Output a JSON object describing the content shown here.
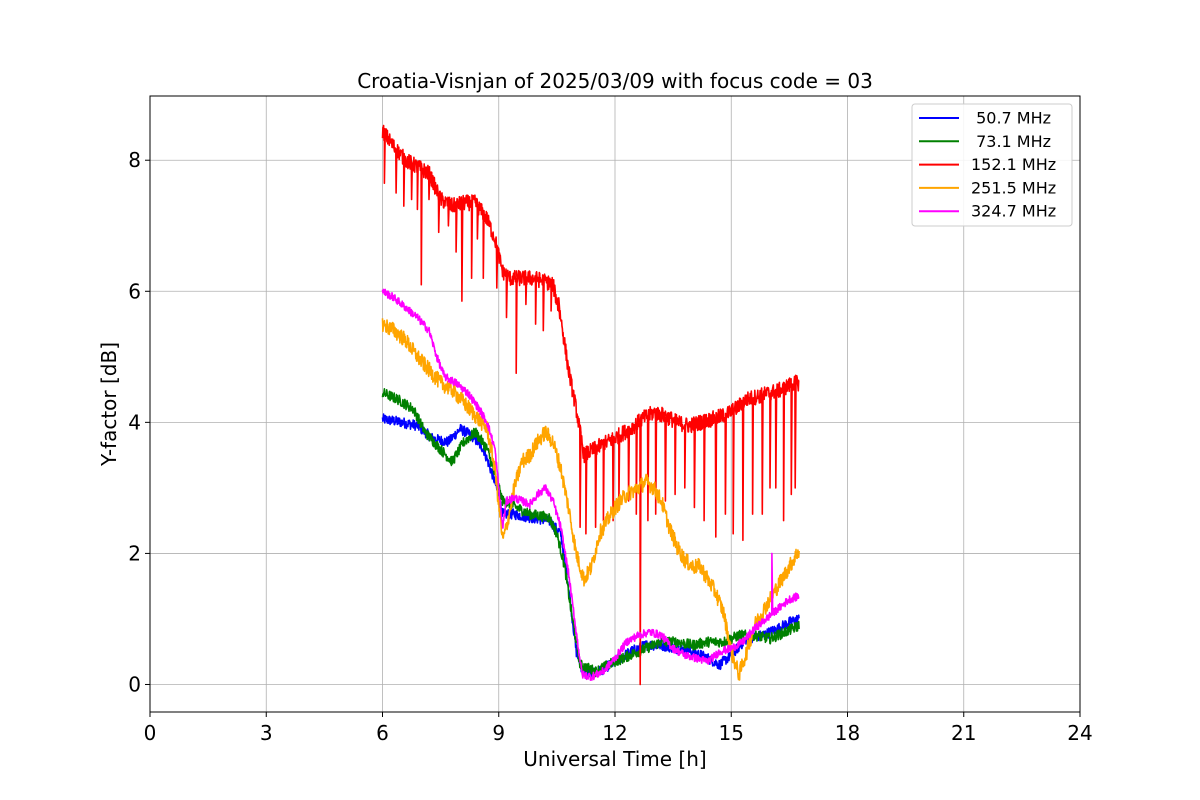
{
  "chart_data": {
    "type": "line",
    "title": "Croatia-Visnjan of 2025/03/09 with focus code = 03",
    "xlabel": "Universal Time [h]",
    "ylabel": "Y-factor [dB]",
    "xlim": [
      0,
      24
    ],
    "ylim": [
      -0.42,
      8.98
    ],
    "xticks": [
      0,
      3,
      6,
      9,
      12,
      15,
      18,
      21,
      24
    ],
    "yticks": [
      0,
      2,
      4,
      6,
      8
    ],
    "grid": true,
    "legend_position": "top-right",
    "series": [
      {
        "name": " 50.7 MHz",
        "color": "#0000ff",
        "noise": 0.08,
        "points": [
          [
            6.0,
            4.05
          ],
          [
            6.5,
            4.0
          ],
          [
            6.9,
            3.95
          ],
          [
            7.3,
            3.75
          ],
          [
            7.7,
            3.7
          ],
          [
            8.0,
            3.9
          ],
          [
            8.3,
            3.8
          ],
          [
            8.6,
            3.6
          ],
          [
            8.9,
            3.1
          ],
          [
            9.1,
            2.6
          ],
          [
            9.4,
            2.6
          ],
          [
            9.8,
            2.55
          ],
          [
            10.3,
            2.5
          ],
          [
            10.6,
            2.3
          ],
          [
            10.8,
            1.5
          ],
          [
            11.0,
            0.5
          ],
          [
            11.2,
            0.15
          ],
          [
            11.6,
            0.2
          ],
          [
            12.0,
            0.35
          ],
          [
            12.4,
            0.5
          ],
          [
            12.8,
            0.6
          ],
          [
            13.2,
            0.6
          ],
          [
            13.6,
            0.55
          ],
          [
            14.0,
            0.5
          ],
          [
            14.4,
            0.4
          ],
          [
            14.7,
            0.3
          ],
          [
            15.0,
            0.45
          ],
          [
            15.4,
            0.7
          ],
          [
            15.8,
            0.75
          ],
          [
            16.2,
            0.85
          ],
          [
            16.5,
            0.95
          ],
          [
            16.75,
            1.0
          ]
        ]
      },
      {
        "name": " 73.1 MHz",
        "color": "#008000",
        "noise": 0.08,
        "points": [
          [
            6.0,
            4.45
          ],
          [
            6.4,
            4.35
          ],
          [
            6.8,
            4.2
          ],
          [
            7.1,
            3.85
          ],
          [
            7.4,
            3.65
          ],
          [
            7.8,
            3.4
          ],
          [
            8.1,
            3.7
          ],
          [
            8.4,
            3.85
          ],
          [
            8.7,
            3.6
          ],
          [
            8.9,
            3.2
          ],
          [
            9.1,
            2.8
          ],
          [
            9.3,
            2.75
          ],
          [
            9.8,
            2.6
          ],
          [
            10.3,
            2.55
          ],
          [
            10.5,
            2.3
          ],
          [
            10.7,
            1.8
          ],
          [
            10.9,
            1.0
          ],
          [
            11.1,
            0.3
          ],
          [
            11.5,
            0.2
          ],
          [
            12.0,
            0.35
          ],
          [
            12.4,
            0.45
          ],
          [
            12.8,
            0.55
          ],
          [
            13.2,
            0.65
          ],
          [
            13.6,
            0.65
          ],
          [
            14.0,
            0.6
          ],
          [
            14.4,
            0.65
          ],
          [
            14.8,
            0.65
          ],
          [
            15.2,
            0.75
          ],
          [
            15.6,
            0.75
          ],
          [
            16.0,
            0.7
          ],
          [
            16.4,
            0.8
          ],
          [
            16.75,
            0.9
          ]
        ]
      },
      {
        "name": "152.1 MHz",
        "color": "#ff0000",
        "noise": 0.12,
        "points": [
          [
            6.0,
            8.45
          ],
          [
            6.3,
            8.2
          ],
          [
            6.6,
            8.0
          ],
          [
            6.9,
            7.9
          ],
          [
            7.2,
            7.8
          ],
          [
            7.5,
            7.4
          ],
          [
            7.8,
            7.3
          ],
          [
            8.1,
            7.35
          ],
          [
            8.4,
            7.35
          ],
          [
            8.7,
            7.1
          ],
          [
            8.9,
            6.8
          ],
          [
            9.1,
            6.3
          ],
          [
            9.3,
            6.2
          ],
          [
            9.6,
            6.2
          ],
          [
            9.9,
            6.2
          ],
          [
            10.2,
            6.15
          ],
          [
            10.4,
            6.1
          ],
          [
            10.6,
            5.6
          ],
          [
            10.8,
            4.8
          ],
          [
            11.0,
            4.2
          ],
          [
            11.2,
            3.5
          ],
          [
            11.5,
            3.6
          ],
          [
            11.8,
            3.7
          ],
          [
            12.1,
            3.8
          ],
          [
            12.4,
            3.9
          ],
          [
            12.7,
            4.05
          ],
          [
            13.0,
            4.15
          ],
          [
            13.3,
            4.1
          ],
          [
            13.6,
            4.0
          ],
          [
            13.9,
            3.95
          ],
          [
            14.2,
            4.0
          ],
          [
            14.5,
            4.05
          ],
          [
            14.8,
            4.1
          ],
          [
            15.1,
            4.2
          ],
          [
            15.4,
            4.35
          ],
          [
            15.7,
            4.4
          ],
          [
            16.0,
            4.45
          ],
          [
            16.3,
            4.5
          ],
          [
            16.6,
            4.6
          ],
          [
            16.75,
            4.6
          ]
        ],
        "dips": [
          [
            6.05,
            7.65
          ],
          [
            6.35,
            7.5
          ],
          [
            6.55,
            7.3
          ],
          [
            6.75,
            7.4
          ],
          [
            6.9,
            7.25
          ],
          [
            7.0,
            6.1
          ],
          [
            7.2,
            7.4
          ],
          [
            7.45,
            6.9
          ],
          [
            7.7,
            7.0
          ],
          [
            7.9,
            6.6
          ],
          [
            8.05,
            5.85
          ],
          [
            8.3,
            6.2
          ],
          [
            8.45,
            6.8
          ],
          [
            8.6,
            6.2
          ],
          [
            8.95,
            6.05
          ],
          [
            9.2,
            5.6
          ],
          [
            9.45,
            4.75
          ],
          [
            9.7,
            5.8
          ],
          [
            9.95,
            5.5
          ],
          [
            10.15,
            5.4
          ],
          [
            10.35,
            5.7
          ],
          [
            10.55,
            5.9
          ],
          [
            11.1,
            2.4
          ],
          [
            11.25,
            2.3
          ],
          [
            11.5,
            2.4
          ],
          [
            11.7,
            2.5
          ],
          [
            11.95,
            2.5
          ],
          [
            12.1,
            2.7
          ],
          [
            12.35,
            2.8
          ],
          [
            12.55,
            2.6
          ],
          [
            12.65,
            0.0
          ],
          [
            12.85,
            2.5
          ],
          [
            13.05,
            2.6
          ],
          [
            13.3,
            2.8
          ],
          [
            13.55,
            2.9
          ],
          [
            13.8,
            3.0
          ],
          [
            14.05,
            2.7
          ],
          [
            14.3,
            2.5
          ],
          [
            14.6,
            2.25
          ],
          [
            14.85,
            2.6
          ],
          [
            15.05,
            2.3
          ],
          [
            15.3,
            2.2
          ],
          [
            15.55,
            2.6
          ],
          [
            15.8,
            2.6
          ],
          [
            16.0,
            3.0
          ],
          [
            16.15,
            3.0
          ],
          [
            16.35,
            2.5
          ],
          [
            16.55,
            2.9
          ],
          [
            16.65,
            3.0
          ]
        ]
      },
      {
        "name": "251.5 MHz",
        "color": "#ffa500",
        "noise": 0.12,
        "points": [
          [
            6.0,
            5.5
          ],
          [
            6.3,
            5.4
          ],
          [
            6.6,
            5.25
          ],
          [
            6.9,
            5.0
          ],
          [
            7.2,
            4.8
          ],
          [
            7.5,
            4.6
          ],
          [
            7.8,
            4.5
          ],
          [
            8.1,
            4.3
          ],
          [
            8.4,
            4.1
          ],
          [
            8.7,
            3.9
          ],
          [
            8.9,
            3.3
          ],
          [
            9.1,
            2.2
          ],
          [
            9.2,
            2.4
          ],
          [
            9.4,
            3.0
          ],
          [
            9.6,
            3.4
          ],
          [
            9.8,
            3.5
          ],
          [
            10.0,
            3.7
          ],
          [
            10.2,
            3.85
          ],
          [
            10.4,
            3.7
          ],
          [
            10.6,
            3.3
          ],
          [
            10.8,
            2.7
          ],
          [
            11.0,
            2.0
          ],
          [
            11.2,
            1.6
          ],
          [
            11.4,
            1.8
          ],
          [
            11.6,
            2.3
          ],
          [
            11.8,
            2.5
          ],
          [
            12.0,
            2.7
          ],
          [
            12.3,
            2.9
          ],
          [
            12.6,
            3.0
          ],
          [
            12.8,
            3.1
          ],
          [
            13.0,
            3.0
          ],
          [
            13.2,
            2.8
          ],
          [
            13.4,
            2.4
          ],
          [
            13.6,
            2.1
          ],
          [
            13.8,
            1.9
          ],
          [
            14.0,
            1.8
          ],
          [
            14.2,
            1.8
          ],
          [
            14.4,
            1.6
          ],
          [
            14.6,
            1.4
          ],
          [
            14.8,
            1.1
          ],
          [
            15.0,
            0.5
          ],
          [
            15.2,
            0.15
          ],
          [
            15.4,
            0.5
          ],
          [
            15.6,
            0.9
          ],
          [
            15.8,
            1.1
          ],
          [
            16.0,
            1.3
          ],
          [
            16.2,
            1.5
          ],
          [
            16.4,
            1.7
          ],
          [
            16.6,
            1.9
          ],
          [
            16.75,
            2.05
          ]
        ]
      },
      {
        "name": "324.7 MHz",
        "color": "#ff00ff",
        "noise": 0.06,
        "points": [
          [
            6.0,
            6.0
          ],
          [
            6.3,
            5.9
          ],
          [
            6.6,
            5.75
          ],
          [
            6.9,
            5.6
          ],
          [
            7.2,
            5.4
          ],
          [
            7.4,
            5.0
          ],
          [
            7.6,
            4.7
          ],
          [
            7.9,
            4.6
          ],
          [
            8.2,
            4.45
          ],
          [
            8.5,
            4.2
          ],
          [
            8.7,
            4.0
          ],
          [
            8.9,
            3.6
          ],
          [
            9.0,
            3.0
          ],
          [
            9.1,
            2.4
          ],
          [
            9.2,
            2.8
          ],
          [
            9.4,
            2.85
          ],
          [
            9.6,
            2.8
          ],
          [
            9.8,
            2.75
          ],
          [
            10.0,
            2.9
          ],
          [
            10.2,
            3.0
          ],
          [
            10.4,
            2.8
          ],
          [
            10.6,
            2.4
          ],
          [
            10.8,
            1.7
          ],
          [
            11.0,
            0.8
          ],
          [
            11.15,
            0.15
          ],
          [
            11.4,
            0.12
          ],
          [
            11.7,
            0.2
          ],
          [
            12.0,
            0.4
          ],
          [
            12.3,
            0.65
          ],
          [
            12.6,
            0.75
          ],
          [
            12.9,
            0.8
          ],
          [
            13.2,
            0.75
          ],
          [
            13.5,
            0.55
          ],
          [
            13.8,
            0.45
          ],
          [
            14.1,
            0.4
          ],
          [
            14.4,
            0.35
          ],
          [
            14.7,
            0.5
          ],
          [
            15.0,
            0.55
          ],
          [
            15.3,
            0.65
          ],
          [
            15.6,
            0.85
          ],
          [
            15.9,
            1.0
          ],
          [
            16.2,
            1.15
          ],
          [
            16.5,
            1.3
          ],
          [
            16.75,
            1.35
          ]
        ],
        "spikes": [
          [
            16.05,
            2.0
          ]
        ]
      }
    ]
  }
}
